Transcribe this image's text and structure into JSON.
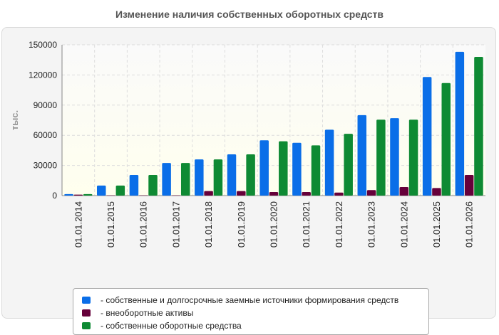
{
  "chart_data": {
    "type": "bar",
    "title": "Изменение наличия собственных оборотных средств",
    "xlabel": "",
    "ylabel": "тыс.",
    "ylim": [
      0,
      150000
    ],
    "yticks": [
      "0",
      "30000",
      "60000",
      "90000",
      "120000",
      "150000"
    ],
    "grid": true,
    "legend_position": "bottom",
    "categories": [
      "01.01.2014",
      "01.01.2015",
      "01.01.2016",
      "01.01.2017",
      "01.01.2018",
      "01.01.2019",
      "01.01.2020",
      "01.01.2021",
      "01.01.2022",
      "01.01.2023",
      "01.01.2024",
      "01.01.2025",
      "01.01.2026"
    ],
    "series": [
      {
        "name": "- собственные и долгосрочные заемные источники формирования средств",
        "color": "#0a6ee8",
        "values": [
          1500,
          10000,
          20500,
          32500,
          36000,
          41000,
          55000,
          52500,
          65500,
          80000,
          77000,
          118000,
          143000
        ]
      },
      {
        "name": "- внеоборотные активы",
        "color": "#66003a",
        "values": [
          1000,
          300,
          300,
          300,
          4500,
          4500,
          3500,
          3500,
          3000,
          5500,
          8500,
          7500,
          20500
        ]
      },
      {
        "name": "- собственные оборотные средства",
        "color": "#0e8a33",
        "values": [
          1500,
          10000,
          20500,
          32500,
          36000,
          41000,
          54000,
          50000,
          61500,
          75500,
          75500,
          112000,
          138000
        ]
      }
    ]
  }
}
